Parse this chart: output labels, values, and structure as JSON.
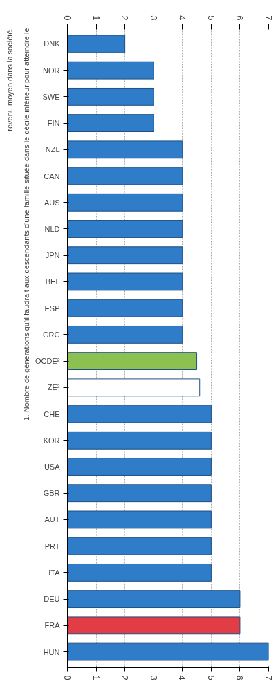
{
  "chart_data": {
    "type": "bar",
    "orientation": "horizontal",
    "categories": [
      "DNK",
      "NOR",
      "SWE",
      "FIN",
      "NZL",
      "CAN",
      "AUS",
      "NLD",
      "JPN",
      "BEL",
      "ESP",
      "GRC",
      "OCDE²",
      "ZE²",
      "CHE",
      "KOR",
      "USA",
      "GBR",
      "AUT",
      "PRT",
      "ITA",
      "DEU",
      "FRA",
      "HUN"
    ],
    "values": [
      2,
      3,
      3,
      3,
      4,
      4,
      4,
      4,
      4,
      4,
      4,
      4,
      4.5,
      4.6,
      5,
      5,
      5,
      5,
      5,
      5,
      5,
      6,
      6,
      7
    ],
    "colors": [
      "#2f7cc9",
      "#2f7cc9",
      "#2f7cc9",
      "#2f7cc9",
      "#2f7cc9",
      "#2f7cc9",
      "#2f7cc9",
      "#2f7cc9",
      "#2f7cc9",
      "#2f7cc9",
      "#2f7cc9",
      "#2f7cc9",
      "#8cc152",
      "#ffffff",
      "#2f7cc9",
      "#2f7cc9",
      "#2f7cc9",
      "#2f7cc9",
      "#2f7cc9",
      "#2f7cc9",
      "#2f7cc9",
      "#2f7cc9",
      "#e23c44",
      "#2f7cc9"
    ],
    "xlim": [
      0,
      7
    ],
    "xticks": [
      0,
      1,
      2,
      3,
      4,
      5,
      6,
      7
    ],
    "x2lim": [
      0,
      7
    ],
    "x2ticks": [
      0,
      1,
      2,
      3,
      4,
      5,
      6,
      7
    ],
    "grid": "x",
    "annotations": [
      "1. Nombre de générations qu'il faudrait aux descendants d'une famille située dans le décile inférieur pour atteindre le revenu moyen dans la société."
    ]
  }
}
